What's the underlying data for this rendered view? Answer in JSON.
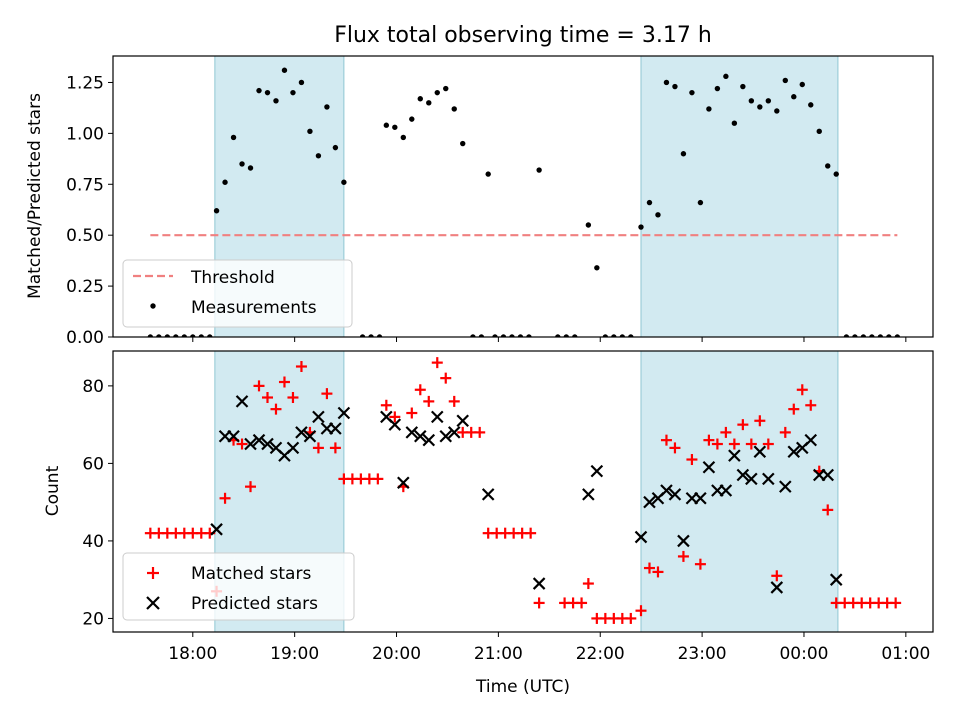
{
  "figure": {
    "title": "Flux total observing time = 3.17 h"
  },
  "chart_data": [
    {
      "type": "scatter",
      "ylabel": "Matched/Predicted stars",
      "ylim": [
        0,
        1.38
      ],
      "yticks": [
        "0.00",
        "0.25",
        "0.50",
        "0.75",
        "1.00",
        "1.25"
      ],
      "yticks_values": [
        0,
        0.25,
        0.5,
        0.75,
        1.0,
        1.25
      ],
      "xlim": [
        "17:13",
        "01:16"
      ],
      "xticks_visible": false,
      "shaded_intervals": [
        [
          "18:13",
          "19:29"
        ],
        [
          "22:24",
          "00:20"
        ]
      ],
      "shade_color": "#add8e6",
      "legend": {
        "position": "lower-left",
        "entries": [
          {
            "label": "Threshold",
            "kind": "dashed-line",
            "color": "#f08080"
          },
          {
            "label": "Measurements",
            "kind": "dot",
            "color": "#000000"
          }
        ]
      },
      "threshold": {
        "value": 0.5,
        "from": "17:35",
        "to": "00:55",
        "color": "#f08080"
      },
      "measurements": [
        [
          "17:35",
          0
        ],
        [
          "17:40",
          0
        ],
        [
          "17:45",
          0
        ],
        [
          "17:50",
          0
        ],
        [
          "17:55",
          0
        ],
        [
          "18:00",
          0
        ],
        [
          "18:05",
          0
        ],
        [
          "18:10",
          0
        ],
        [
          "18:14",
          0.62
        ],
        [
          "18:19",
          0.76
        ],
        [
          "18:24",
          0.98
        ],
        [
          "18:29",
          0.85
        ],
        [
          "18:34",
          0.83
        ],
        [
          "18:39",
          1.21
        ],
        [
          "18:44",
          1.2
        ],
        [
          "18:49",
          1.16
        ],
        [
          "18:54",
          1.31
        ],
        [
          "18:59",
          1.2
        ],
        [
          "19:04",
          1.25
        ],
        [
          "19:09",
          1.01
        ],
        [
          "19:14",
          0.89
        ],
        [
          "19:19",
          1.13
        ],
        [
          "19:24",
          0.93
        ],
        [
          "19:29",
          0.76
        ],
        [
          "19:40",
          0
        ],
        [
          "19:45",
          0
        ],
        [
          "19:50",
          0
        ],
        [
          "19:54",
          1.04
        ],
        [
          "19:59",
          1.03
        ],
        [
          "20:04",
          0.98
        ],
        [
          "20:09",
          1.07
        ],
        [
          "20:14",
          1.17
        ],
        [
          "20:19",
          1.15
        ],
        [
          "20:24",
          1.2
        ],
        [
          "20:29",
          1.22
        ],
        [
          "20:34",
          1.12
        ],
        [
          "20:39",
          0.95
        ],
        [
          "20:45",
          0
        ],
        [
          "20:50",
          0
        ],
        [
          "20:54",
          0.8
        ],
        [
          "20:58",
          0
        ],
        [
          "21:03",
          0
        ],
        [
          "21:08",
          0
        ],
        [
          "21:13",
          0
        ],
        [
          "21:18",
          0
        ],
        [
          "21:24",
          0.82
        ],
        [
          "21:35",
          0
        ],
        [
          "21:40",
          0
        ],
        [
          "21:45",
          0
        ],
        [
          "21:53",
          0.55
        ],
        [
          "21:58",
          0.34
        ],
        [
          "22:03",
          0
        ],
        [
          "22:08",
          0
        ],
        [
          "22:13",
          0
        ],
        [
          "22:18",
          0
        ],
        [
          "22:24",
          0.54
        ],
        [
          "22:29",
          0.66
        ],
        [
          "22:34",
          0.6
        ],
        [
          "22:39",
          1.25
        ],
        [
          "22:44",
          1.23
        ],
        [
          "22:49",
          0.9
        ],
        [
          "22:54",
          1.2
        ],
        [
          "22:59",
          0.66
        ],
        [
          "23:04",
          1.12
        ],
        [
          "23:09",
          1.22
        ],
        [
          "23:14",
          1.28
        ],
        [
          "23:19",
          1.05
        ],
        [
          "23:24",
          1.23
        ],
        [
          "23:29",
          1.16
        ],
        [
          "23:34",
          1.13
        ],
        [
          "23:39",
          1.16
        ],
        [
          "23:44",
          1.11
        ],
        [
          "23:49",
          1.26
        ],
        [
          "23:54",
          1.18
        ],
        [
          "23:59",
          1.24
        ],
        [
          "00:04",
          1.14
        ],
        [
          "00:09",
          1.01
        ],
        [
          "00:14",
          0.84
        ],
        [
          "00:19",
          0.8
        ],
        [
          "00:25",
          0
        ],
        [
          "00:30",
          0
        ],
        [
          "00:35",
          0
        ],
        [
          "00:40",
          0
        ],
        [
          "00:45",
          0
        ],
        [
          "00:50",
          0
        ],
        [
          "00:55",
          0
        ]
      ]
    },
    {
      "type": "scatter",
      "ylabel": "Count",
      "xlabel": "Time (UTC)",
      "ylim": [
        16.5,
        89
      ],
      "yticks": [
        "20",
        "40",
        "60",
        "80"
      ],
      "yticks_values": [
        20,
        40,
        60,
        80
      ],
      "xlim": [
        "17:13",
        "01:16"
      ],
      "xticks": [
        "18:00",
        "19:00",
        "20:00",
        "21:00",
        "22:00",
        "23:00",
        "00:00",
        "01:00"
      ],
      "shaded_intervals": [
        [
          "18:13",
          "19:29"
        ],
        [
          "22:24",
          "00:20"
        ]
      ],
      "shade_color": "#add8e6",
      "legend": {
        "position": "lower-left",
        "entries": [
          {
            "label": "Matched stars",
            "kind": "plus",
            "color": "#ff0000"
          },
          {
            "label": "Predicted stars",
            "kind": "x",
            "color": "#000000"
          }
        ]
      },
      "matched": [
        [
          "17:35",
          42
        ],
        [
          "17:40",
          42
        ],
        [
          "17:45",
          42
        ],
        [
          "17:50",
          42
        ],
        [
          "17:55",
          42
        ],
        [
          "18:00",
          42
        ],
        [
          "18:05",
          42
        ],
        [
          "18:10",
          42
        ],
        [
          "18:14",
          27
        ],
        [
          "18:19",
          51
        ],
        [
          "18:24",
          66
        ],
        [
          "18:29",
          65
        ],
        [
          "18:34",
          54
        ],
        [
          "18:39",
          80
        ],
        [
          "18:44",
          77
        ],
        [
          "18:49",
          74
        ],
        [
          "18:54",
          81
        ],
        [
          "18:59",
          77
        ],
        [
          "19:04",
          85
        ],
        [
          "19:09",
          68
        ],
        [
          "19:14",
          64
        ],
        [
          "19:19",
          78
        ],
        [
          "19:24",
          64
        ],
        [
          "19:29",
          56
        ],
        [
          "19:34",
          56
        ],
        [
          "19:39",
          56
        ],
        [
          "19:44",
          56
        ],
        [
          "19:49",
          56
        ],
        [
          "19:54",
          75
        ],
        [
          "19:59",
          72
        ],
        [
          "20:04",
          54
        ],
        [
          "20:09",
          73
        ],
        [
          "20:14",
          79
        ],
        [
          "20:19",
          76
        ],
        [
          "20:24",
          86
        ],
        [
          "20:29",
          82
        ],
        [
          "20:34",
          76
        ],
        [
          "20:39",
          68
        ],
        [
          "20:44",
          68
        ],
        [
          "20:49",
          68
        ],
        [
          "20:54",
          42
        ],
        [
          "20:59",
          42
        ],
        [
          "21:04",
          42
        ],
        [
          "21:09",
          42
        ],
        [
          "21:14",
          42
        ],
        [
          "21:19",
          42
        ],
        [
          "21:24",
          24
        ],
        [
          "21:39",
          24
        ],
        [
          "21:44",
          24
        ],
        [
          "21:49",
          24
        ],
        [
          "21:53",
          29
        ],
        [
          "21:58",
          20
        ],
        [
          "22:03",
          20
        ],
        [
          "22:08",
          20
        ],
        [
          "22:13",
          20
        ],
        [
          "22:18",
          20
        ],
        [
          "22:24",
          22
        ],
        [
          "22:29",
          33
        ],
        [
          "22:34",
          32
        ],
        [
          "22:39",
          66
        ],
        [
          "22:44",
          64
        ],
        [
          "22:49",
          36
        ],
        [
          "22:54",
          61
        ],
        [
          "22:59",
          34
        ],
        [
          "23:04",
          66
        ],
        [
          "23:09",
          65
        ],
        [
          "23:14",
          68
        ],
        [
          "23:19",
          65
        ],
        [
          "23:24",
          70
        ],
        [
          "23:29",
          65
        ],
        [
          "23:34",
          71
        ],
        [
          "23:39",
          65
        ],
        [
          "23:44",
          31
        ],
        [
          "23:49",
          68
        ],
        [
          "23:54",
          74
        ],
        [
          "23:59",
          79
        ],
        [
          "00:04",
          75
        ],
        [
          "00:09",
          58
        ],
        [
          "00:14",
          48
        ],
        [
          "00:19",
          24
        ],
        [
          "00:24",
          24
        ],
        [
          "00:29",
          24
        ],
        [
          "00:34",
          24
        ],
        [
          "00:39",
          24
        ],
        [
          "00:44",
          24
        ],
        [
          "00:49",
          24
        ],
        [
          "00:54",
          24
        ]
      ],
      "predicted": [
        [
          "18:14",
          43
        ],
        [
          "18:19",
          67
        ],
        [
          "18:24",
          67
        ],
        [
          "18:29",
          76
        ],
        [
          "18:34",
          65
        ],
        [
          "18:39",
          66
        ],
        [
          "18:44",
          65
        ],
        [
          "18:49",
          64
        ],
        [
          "18:54",
          62
        ],
        [
          "18:59",
          64
        ],
        [
          "19:04",
          68
        ],
        [
          "19:09",
          67
        ],
        [
          "19:14",
          72
        ],
        [
          "19:19",
          69
        ],
        [
          "19:24",
          69
        ],
        [
          "19:29",
          73
        ],
        [
          "19:54",
          72
        ],
        [
          "19:59",
          70
        ],
        [
          "20:04",
          55
        ],
        [
          "20:09",
          68
        ],
        [
          "20:14",
          67
        ],
        [
          "20:19",
          66
        ],
        [
          "20:24",
          72
        ],
        [
          "20:29",
          67
        ],
        [
          "20:34",
          68
        ],
        [
          "20:39",
          71
        ],
        [
          "20:54",
          52
        ],
        [
          "21:24",
          29
        ],
        [
          "21:53",
          52
        ],
        [
          "21:58",
          58
        ],
        [
          "22:24",
          41
        ],
        [
          "22:29",
          50
        ],
        [
          "22:34",
          51
        ],
        [
          "22:39",
          53
        ],
        [
          "22:44",
          52
        ],
        [
          "22:49",
          40
        ],
        [
          "22:54",
          51
        ],
        [
          "22:59",
          51
        ],
        [
          "23:04",
          59
        ],
        [
          "23:09",
          53
        ],
        [
          "23:14",
          53
        ],
        [
          "23:19",
          62
        ],
        [
          "23:24",
          57
        ],
        [
          "23:29",
          56
        ],
        [
          "23:34",
          63
        ],
        [
          "23:39",
          56
        ],
        [
          "23:44",
          28
        ],
        [
          "23:49",
          54
        ],
        [
          "23:54",
          63
        ],
        [
          "23:59",
          64
        ],
        [
          "00:04",
          66
        ],
        [
          "00:09",
          57
        ],
        [
          "00:14",
          57
        ],
        [
          "00:19",
          30
        ]
      ]
    }
  ]
}
